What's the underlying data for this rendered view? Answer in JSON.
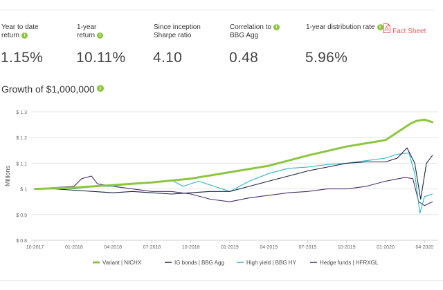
{
  "stats": [
    {
      "label_line1": "Year to date",
      "label_line2": "return",
      "value": "1.15%"
    },
    {
      "label_line1": "1-year",
      "label_line2": "return",
      "value": "10.11%"
    },
    {
      "label_line1": "Since inception",
      "label_line2": "Sharpe ratio",
      "value": "4.10"
    },
    {
      "label_line1": "Correlation to",
      "label_line2": "BBG Agg",
      "value": "0.48"
    },
    {
      "label_line1": "1-year distribution rate",
      "label_line2": "",
      "value": "5.96%"
    }
  ],
  "fact_sheet_label": "Fact Sheet",
  "info_glyph": "i",
  "section_title": "Growth of $1,000,000",
  "colors": {
    "accent": "#8cc63f",
    "variant": "#8cc63f",
    "ig_bonds": "#1c2340",
    "high_yield": "#2bb3c6",
    "hedge_funds": "#4a2f66",
    "pdf_red": "#e05a5a"
  },
  "chart_data": {
    "type": "line",
    "title": "Growth of $1,000,000",
    "xlabel": "",
    "ylabel": "Millions",
    "ylim": [
      0.8,
      1.3
    ],
    "yticks": [
      0.8,
      0.9,
      1.0,
      1.1,
      1.2,
      1.3
    ],
    "ytick_labels": [
      "$ 0.8",
      "$ 0.9",
      "$ 1",
      "$ 1.1",
      "$ 1.2",
      "$ 1.3"
    ],
    "x_ticks": [
      "10-2017",
      "01-2018",
      "04-2018",
      "07-2018",
      "10-2018",
      "01-2019",
      "04-2019",
      "07-2019",
      "10-2019",
      "01-2020",
      "04-2020"
    ],
    "grid": true,
    "legend_position": "bottom",
    "series": [
      {
        "name": "Variant | NICHX",
        "color": "#8cc63f",
        "x": [
          0,
          1,
          2,
          3,
          4,
          5,
          6,
          7,
          8,
          9,
          9.4,
          9.65,
          9.8,
          10,
          10.2
        ],
        "values": [
          1.0,
          1.005,
          1.015,
          1.025,
          1.04,
          1.065,
          1.09,
          1.13,
          1.165,
          1.19,
          1.23,
          1.255,
          1.265,
          1.27,
          1.26
        ]
      },
      {
        "name": "IG bonds | BBG Agg",
        "color": "#1c2340",
        "x": [
          0,
          0.5,
          1,
          1.5,
          2,
          2.5,
          3,
          3.5,
          4,
          4.5,
          5,
          5.5,
          6,
          6.5,
          7,
          7.5,
          8,
          8.5,
          9,
          9.3,
          9.55,
          9.75,
          9.9,
          10.05,
          10.2
        ],
        "values": [
          1.0,
          1.0,
          0.995,
          0.99,
          0.985,
          0.99,
          0.985,
          0.98,
          0.985,
          0.99,
          0.99,
          1.01,
          1.03,
          1.05,
          1.07,
          1.085,
          1.1,
          1.105,
          1.105,
          1.12,
          1.16,
          1.1,
          0.96,
          1.1,
          1.13
        ]
      },
      {
        "name": "High yield | BBG HY",
        "color": "#2bb3c6",
        "x": [
          0,
          0.5,
          1,
          1.5,
          2,
          2.5,
          3,
          3.5,
          3.8,
          4.2,
          4.6,
          5,
          5.5,
          6,
          6.5,
          7,
          7.5,
          8,
          8.5,
          9,
          9.3,
          9.6,
          9.75,
          9.88,
          10,
          10.2
        ],
        "values": [
          1.0,
          1.005,
          1.0,
          1.01,
          1.01,
          1.02,
          1.025,
          1.035,
          1.01,
          1.03,
          1.01,
          0.99,
          1.03,
          1.06,
          1.08,
          1.085,
          1.095,
          1.1,
          1.11,
          1.12,
          1.135,
          1.14,
          1.06,
          0.905,
          0.97,
          0.98
        ]
      },
      {
        "name": "Hedge funds | HFRXGL",
        "color": "#4a2f66",
        "x": [
          0,
          0.5,
          1,
          1.2,
          1.45,
          1.6,
          2,
          2.5,
          3,
          3.5,
          4,
          4.5,
          5,
          5.5,
          6,
          6.5,
          7,
          7.5,
          8,
          8.5,
          9,
          9.5,
          9.7,
          9.85,
          10,
          10.2
        ],
        "values": [
          1.0,
          1.005,
          1.01,
          1.04,
          1.05,
          1.02,
          1.01,
          1.0,
          0.99,
          0.99,
          0.98,
          0.96,
          0.95,
          0.965,
          0.975,
          0.985,
          0.99,
          1.0,
          1.0,
          1.01,
          1.03,
          1.045,
          1.04,
          0.95,
          0.935,
          0.95
        ]
      }
    ]
  }
}
